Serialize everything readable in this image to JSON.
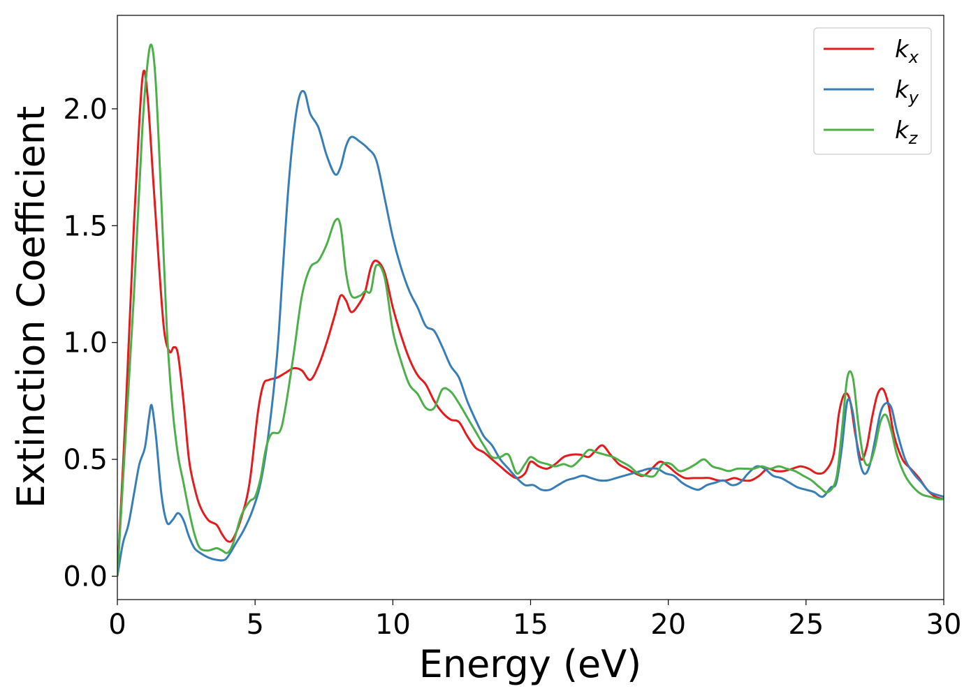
{
  "chart_data": {
    "type": "line",
    "title": "",
    "xlabel": "Energy (eV)",
    "ylabel": "Extinction Coefficient",
    "xlim": [
      0,
      30
    ],
    "ylim": [
      -0.1,
      2.4
    ],
    "xticks": [
      0,
      5,
      10,
      15,
      20,
      25,
      30
    ],
    "xtick_labels": [
      "0",
      "5",
      "10",
      "15",
      "20",
      "25",
      "30"
    ],
    "yticks": [
      0.0,
      0.5,
      1.0,
      1.5,
      2.0
    ],
    "ytick_labels": [
      "0.0",
      "0.5",
      "1.0",
      "1.5",
      "2.0"
    ],
    "grid": false,
    "legend_position": "top-right",
    "series": [
      {
        "name": "k_x",
        "label_base": "k",
        "label_sub": "x",
        "color": "#e41a1c",
        "x": [
          0,
          0.3,
          0.6,
          0.8,
          0.95,
          1.1,
          1.3,
          1.5,
          1.7,
          1.9,
          2.05,
          2.2,
          2.4,
          2.6,
          2.8,
          3.0,
          3.3,
          3.6,
          3.8,
          4.0,
          4.2,
          4.5,
          4.8,
          5.1,
          5.3,
          5.5,
          5.8,
          6.1,
          6.4,
          6.7,
          7.0,
          7.3,
          7.6,
          7.9,
          8.1,
          8.3,
          8.5,
          8.8,
          9.0,
          9.2,
          9.4,
          9.7,
          10.0,
          10.3,
          10.6,
          10.9,
          11.2,
          11.5,
          11.8,
          12.1,
          12.4,
          12.7,
          13.0,
          13.3,
          13.6,
          13.9,
          14.2,
          14.5,
          14.8,
          15.0,
          15.3,
          15.6,
          15.9,
          16.2,
          16.5,
          16.8,
          17.1,
          17.3,
          17.6,
          17.9,
          18.2,
          18.5,
          18.8,
          19.1,
          19.4,
          19.7,
          20.0,
          20.3,
          20.6,
          20.9,
          21.2,
          21.5,
          21.8,
          22.1,
          22.4,
          22.7,
          23.0,
          23.3,
          23.6,
          23.9,
          24.2,
          24.5,
          24.8,
          25.1,
          25.4,
          25.7,
          26.0,
          26.2,
          26.4,
          26.6,
          26.8,
          27.0,
          27.2,
          27.4,
          27.6,
          27.8,
          28.0,
          28.2,
          28.5,
          28.8,
          29.1,
          29.4,
          29.7,
          30.0
        ],
        "y": [
          0.0,
          0.7,
          1.5,
          1.95,
          2.16,
          2.05,
          1.7,
          1.35,
          1.05,
          0.96,
          0.98,
          0.95,
          0.75,
          0.5,
          0.38,
          0.3,
          0.24,
          0.22,
          0.18,
          0.15,
          0.16,
          0.25,
          0.4,
          0.7,
          0.82,
          0.84,
          0.85,
          0.87,
          0.89,
          0.88,
          0.84,
          0.9,
          1.0,
          1.12,
          1.2,
          1.18,
          1.13,
          1.17,
          1.22,
          1.32,
          1.35,
          1.3,
          1.15,
          1.03,
          0.93,
          0.86,
          0.82,
          0.75,
          0.7,
          0.67,
          0.66,
          0.6,
          0.55,
          0.53,
          0.5,
          0.47,
          0.44,
          0.42,
          0.44,
          0.49,
          0.47,
          0.46,
          0.48,
          0.51,
          0.52,
          0.52,
          0.51,
          0.53,
          0.56,
          0.52,
          0.48,
          0.46,
          0.44,
          0.43,
          0.46,
          0.49,
          0.47,
          0.44,
          0.42,
          0.42,
          0.42,
          0.42,
          0.41,
          0.41,
          0.42,
          0.41,
          0.41,
          0.43,
          0.46,
          0.45,
          0.45,
          0.46,
          0.47,
          0.46,
          0.44,
          0.45,
          0.52,
          0.7,
          0.78,
          0.75,
          0.6,
          0.5,
          0.55,
          0.68,
          0.78,
          0.8,
          0.73,
          0.6,
          0.5,
          0.46,
          0.42,
          0.37,
          0.34,
          0.33
        ]
      },
      {
        "name": "k_y",
        "label_base": "k",
        "label_sub": "y",
        "color": "#377eb8",
        "x": [
          0,
          0.2,
          0.4,
          0.6,
          0.8,
          1.0,
          1.15,
          1.25,
          1.4,
          1.6,
          1.8,
          2.0,
          2.2,
          2.4,
          2.6,
          2.8,
          3.0,
          3.3,
          3.6,
          3.9,
          4.1,
          4.3,
          4.6,
          4.9,
          5.2,
          5.5,
          5.8,
          6.0,
          6.2,
          6.4,
          6.6,
          6.8,
          7.0,
          7.3,
          7.6,
          7.9,
          8.1,
          8.3,
          8.5,
          8.8,
          9.1,
          9.4,
          9.7,
          10.0,
          10.3,
          10.6,
          10.9,
          11.2,
          11.5,
          11.8,
          12.1,
          12.4,
          12.7,
          13.0,
          13.3,
          13.6,
          13.9,
          14.2,
          14.5,
          14.8,
          15.1,
          15.4,
          15.7,
          16.0,
          16.3,
          16.6,
          16.9,
          17.2,
          17.5,
          17.8,
          18.1,
          18.4,
          18.7,
          19.0,
          19.3,
          19.6,
          19.9,
          20.2,
          20.5,
          20.8,
          21.1,
          21.4,
          21.7,
          22.0,
          22.3,
          22.6,
          22.9,
          23.2,
          23.5,
          23.8,
          24.1,
          24.4,
          24.7,
          25.0,
          25.3,
          25.6,
          25.9,
          26.1,
          26.3,
          26.5,
          26.7,
          26.9,
          27.1,
          27.3,
          27.5,
          27.7,
          27.9,
          28.1,
          28.3,
          28.6,
          28.9,
          29.2,
          29.5,
          30.0
        ],
        "y": [
          0.0,
          0.14,
          0.22,
          0.35,
          0.48,
          0.55,
          0.68,
          0.73,
          0.6,
          0.35,
          0.23,
          0.24,
          0.27,
          0.24,
          0.17,
          0.12,
          0.1,
          0.08,
          0.07,
          0.07,
          0.1,
          0.14,
          0.2,
          0.28,
          0.4,
          0.62,
          0.95,
          1.3,
          1.65,
          1.9,
          2.05,
          2.07,
          1.98,
          1.92,
          1.8,
          1.72,
          1.75,
          1.84,
          1.88,
          1.86,
          1.83,
          1.78,
          1.62,
          1.45,
          1.32,
          1.22,
          1.15,
          1.07,
          1.05,
          0.98,
          0.9,
          0.85,
          0.75,
          0.67,
          0.6,
          0.56,
          0.5,
          0.46,
          0.42,
          0.39,
          0.39,
          0.37,
          0.37,
          0.39,
          0.41,
          0.42,
          0.43,
          0.42,
          0.41,
          0.41,
          0.42,
          0.43,
          0.44,
          0.45,
          0.46,
          0.46,
          0.44,
          0.43,
          0.4,
          0.38,
          0.37,
          0.39,
          0.4,
          0.41,
          0.39,
          0.4,
          0.44,
          0.47,
          0.46,
          0.43,
          0.42,
          0.4,
          0.38,
          0.37,
          0.36,
          0.34,
          0.38,
          0.4,
          0.55,
          0.75,
          0.7,
          0.52,
          0.44,
          0.47,
          0.58,
          0.7,
          0.74,
          0.72,
          0.62,
          0.5,
          0.44,
          0.4,
          0.36,
          0.34
        ]
      },
      {
        "name": "k_z",
        "label_base": "k",
        "label_sub": "z",
        "color": "#4daf4a",
        "x": [
          0,
          0.3,
          0.6,
          0.9,
          1.1,
          1.25,
          1.4,
          1.6,
          1.8,
          2.0,
          2.2,
          2.4,
          2.6,
          2.8,
          3.0,
          3.3,
          3.6,
          3.8,
          4.0,
          4.2,
          4.5,
          4.8,
          5.0,
          5.2,
          5.4,
          5.6,
          5.9,
          6.1,
          6.4,
          6.7,
          7.0,
          7.3,
          7.6,
          7.9,
          8.1,
          8.3,
          8.5,
          8.8,
          9.0,
          9.2,
          9.4,
          9.7,
          10.0,
          10.3,
          10.6,
          10.9,
          11.2,
          11.5,
          11.8,
          12.1,
          12.4,
          12.7,
          13.0,
          13.3,
          13.6,
          13.9,
          14.2,
          14.5,
          14.8,
          15.0,
          15.3,
          15.6,
          15.9,
          16.2,
          16.5,
          16.8,
          17.1,
          17.4,
          17.7,
          18.0,
          18.3,
          18.6,
          18.9,
          19.2,
          19.5,
          19.8,
          20.1,
          20.4,
          20.7,
          21.0,
          21.3,
          21.6,
          21.9,
          22.2,
          22.5,
          22.8,
          23.1,
          23.4,
          23.7,
          24.0,
          24.3,
          24.6,
          24.9,
          25.2,
          25.5,
          25.8,
          26.1,
          26.3,
          26.5,
          26.7,
          26.9,
          27.1,
          27.3,
          27.5,
          27.7,
          27.9,
          28.1,
          28.3,
          28.6,
          28.9,
          29.2,
          29.5,
          29.8,
          30.0
        ],
        "y": [
          0.0,
          0.6,
          1.2,
          1.9,
          2.2,
          2.27,
          2.1,
          1.6,
          1.05,
          0.72,
          0.52,
          0.4,
          0.28,
          0.18,
          0.12,
          0.11,
          0.12,
          0.11,
          0.1,
          0.14,
          0.26,
          0.32,
          0.34,
          0.42,
          0.55,
          0.61,
          0.62,
          0.72,
          0.95,
          1.2,
          1.32,
          1.35,
          1.42,
          1.52,
          1.5,
          1.3,
          1.2,
          1.2,
          1.22,
          1.22,
          1.33,
          1.28,
          1.05,
          0.92,
          0.82,
          0.78,
          0.72,
          0.72,
          0.8,
          0.79,
          0.74,
          0.68,
          0.62,
          0.56,
          0.51,
          0.51,
          0.52,
          0.44,
          0.48,
          0.51,
          0.49,
          0.48,
          0.47,
          0.48,
          0.47,
          0.5,
          0.54,
          0.53,
          0.52,
          0.51,
          0.49,
          0.47,
          0.44,
          0.43,
          0.43,
          0.48,
          0.48,
          0.45,
          0.46,
          0.48,
          0.5,
          0.47,
          0.46,
          0.45,
          0.46,
          0.46,
          0.46,
          0.47,
          0.46,
          0.47,
          0.46,
          0.45,
          0.43,
          0.41,
          0.38,
          0.36,
          0.42,
          0.62,
          0.85,
          0.85,
          0.65,
          0.5,
          0.48,
          0.55,
          0.66,
          0.69,
          0.62,
          0.52,
          0.43,
          0.38,
          0.35,
          0.34,
          0.33,
          0.33
        ]
      }
    ]
  }
}
